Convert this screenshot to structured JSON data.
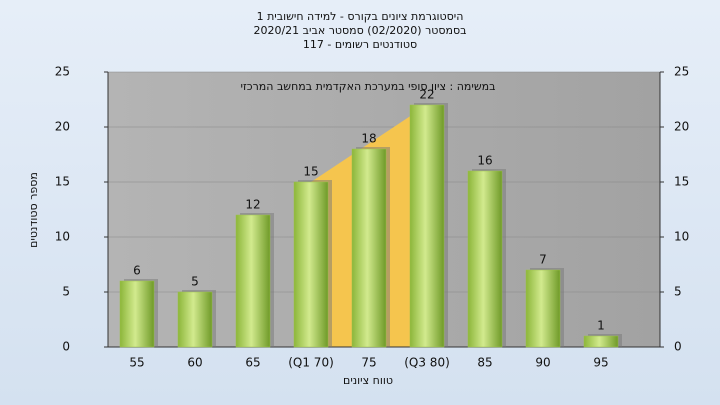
{
  "chart_data": {
    "type": "bar",
    "title": "היסטוגרמת ציונים בקורס - למידה חישובית 1",
    "subtitle": [
      "בסמסטר (02/2020) סמסטר אביב 2020/21",
      "סטודנטים רשומים - 117"
    ],
    "annotation": "במשימה : ציון סופי במערכת האקדמית במחשב המרכזי",
    "y_label": "מספר סטודנטים",
    "x_label": "טווח ציונים",
    "categories": [
      "55",
      "60",
      "65",
      "(Q1 70)",
      "75",
      "(Q3 80)",
      "85",
      "90",
      "95"
    ],
    "values": [
      6,
      5,
      12,
      15,
      18,
      22,
      16,
      7,
      1
    ],
    "color": "#9cc24a",
    "ylim": [
      0,
      25
    ],
    "yticks": [
      0,
      5,
      10,
      15,
      20,
      25
    ],
    "y2lim": [
      0,
      25
    ],
    "y2ticks": [
      0,
      5,
      10,
      15,
      20,
      25
    ],
    "grid": true
  }
}
